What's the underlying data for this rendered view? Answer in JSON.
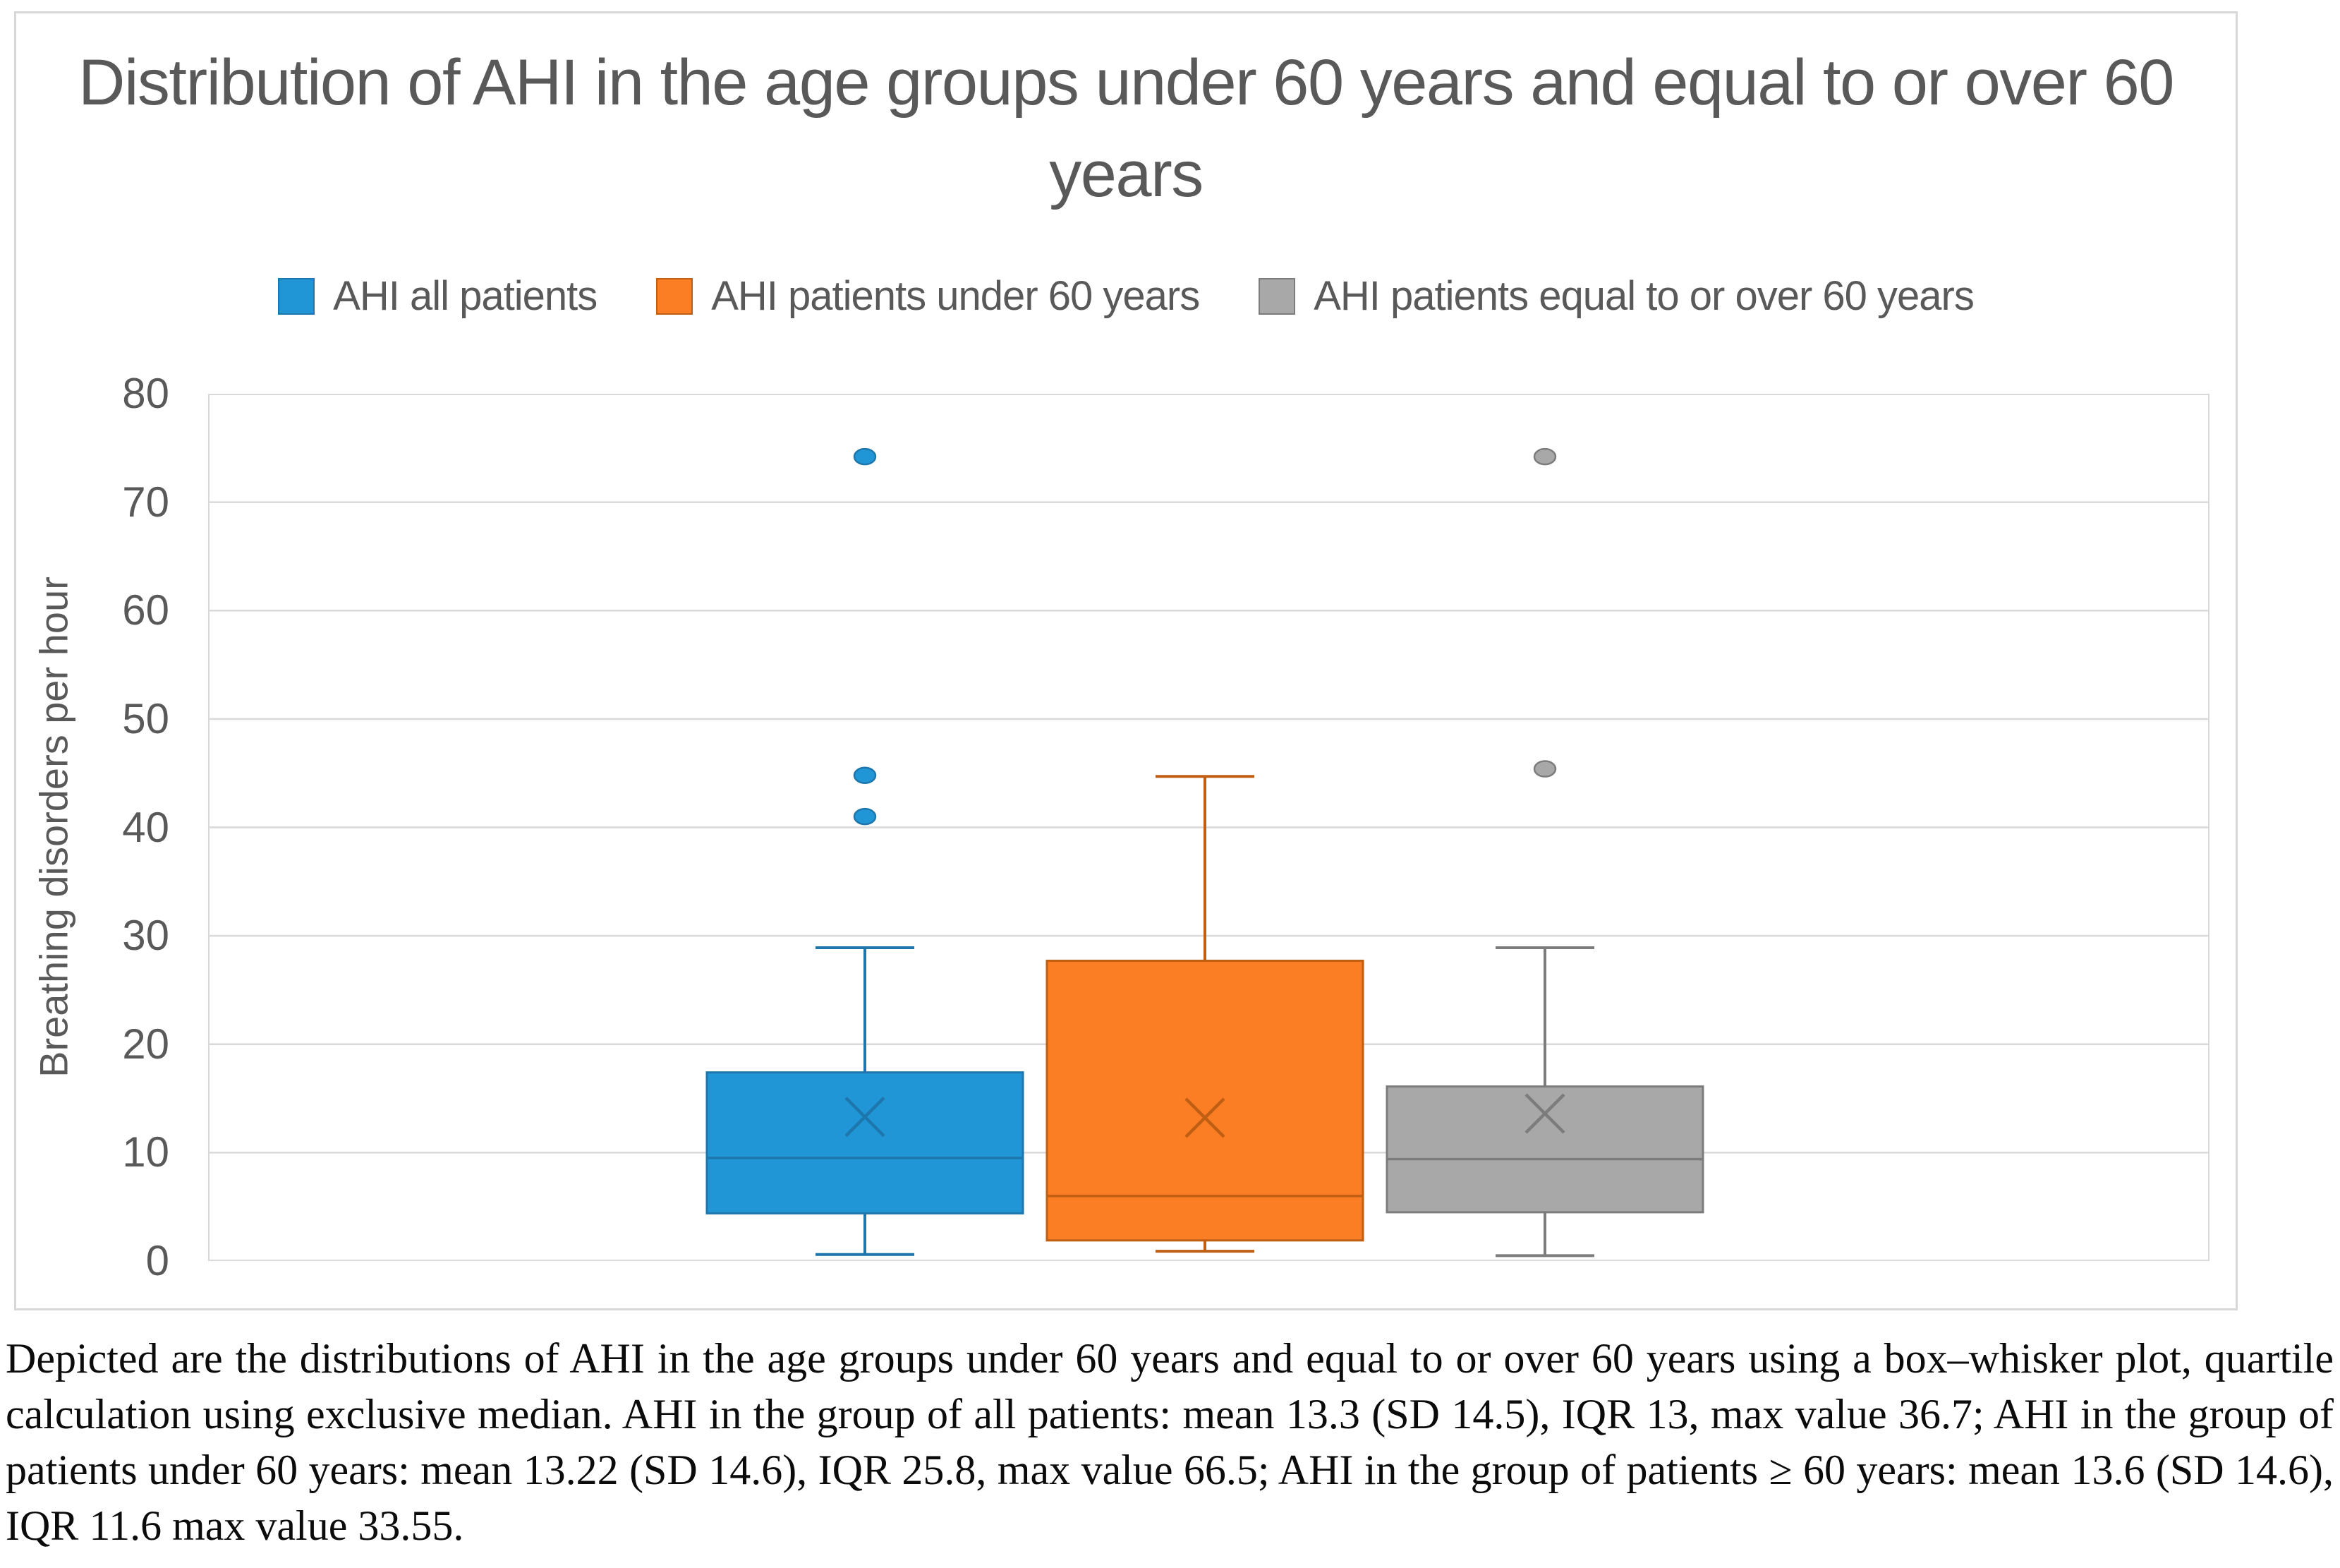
{
  "figure": {
    "caption": "Depicted are the distributions of AHI in the age groups under 60 years and equal to or over 60 years using a box–whisker plot, quartile calculation using exclusive median. AHI in the group of all patients: mean 13.3 (SD 14.5), IQR 13, max value 36.7; AHI in the group of patients under 60 years: mean 13.22 (SD 14.6), IQR 25.8, max value 66.5; AHI in the group of patients ≥ 60 years: mean 13.6 (SD 14.6), IQR 11.6 max value 33.55."
  },
  "colors": {
    "title_text": "#595959",
    "axis_text": "#595959",
    "gridline": "#d9d9d9",
    "frame_border": "#d7d7d7",
    "series_blue": "#2196d6",
    "series_orange": "#fb7d24",
    "series_gray": "#a8a8a8"
  },
  "chart_data": {
    "type": "boxplot",
    "title": "Distribution of AHI in the age groups under 60 years and equal to or over 60 years",
    "ylabel": "Breathing disorders per hour",
    "xlabel": "",
    "ylim": [
      0,
      80
    ],
    "y_ticks": [
      0,
      10,
      20,
      30,
      40,
      50,
      60,
      70,
      80
    ],
    "grid": true,
    "legend_position": "top",
    "series": [
      {
        "name": "AHI all patients",
        "color": "#2196d6",
        "border": "#1d76ac",
        "whisker_low": 0.6,
        "q1": 4.4,
        "median": 9.5,
        "q3": 17.4,
        "whisker_high": 28.9,
        "mean": 13.3,
        "outliers": [
          74.2,
          44.8,
          41.0
        ],
        "caption_stats": "mean 13.3 (SD 14.5), IQR 13, max value 36.7"
      },
      {
        "name": "AHI patients under 60 years",
        "color": "#fb7d24",
        "border": "#c05f13",
        "whisker_low": 0.9,
        "q1": 1.9,
        "median": 6.0,
        "q3": 27.7,
        "whisker_high": 44.7,
        "mean": 13.22,
        "outliers": [],
        "caption_stats": "mean 13.22 (SD 14.6), IQR 25.8, max value 66.5"
      },
      {
        "name": "AHI patients equal to or over 60 years",
        "color": "#a8a8a8",
        "border": "#7c7c7c",
        "whisker_low": 0.5,
        "q1": 4.5,
        "median": 9.4,
        "q3": 16.1,
        "whisker_high": 28.9,
        "mean": 13.6,
        "outliers": [
          74.2,
          45.4
        ],
        "caption_stats": "mean 13.6 (SD 14.6), IQR 11.6 max value 33.55"
      }
    ]
  }
}
